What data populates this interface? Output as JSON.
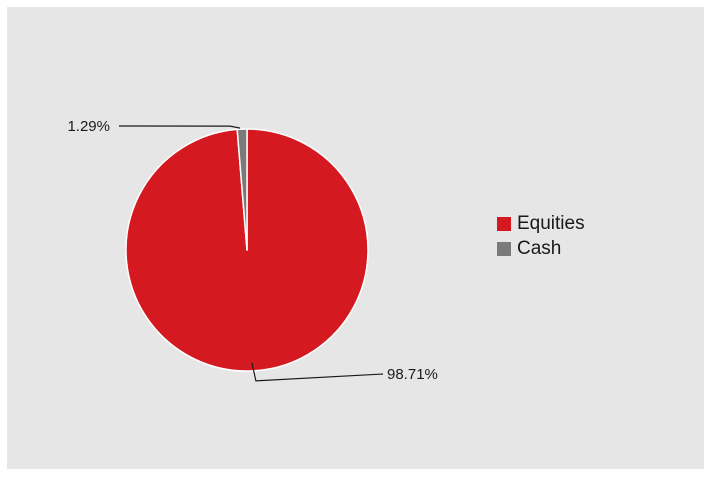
{
  "chart_data": {
    "type": "pie",
    "title": "",
    "slices": [
      {
        "label": "Equities",
        "value": 98.71,
        "display": "98.71%",
        "color": "#d51920"
      },
      {
        "label": "Cash",
        "value": 1.29,
        "display": "1.29%",
        "color": "#7a7a7a"
      }
    ],
    "legend_position": "right"
  }
}
